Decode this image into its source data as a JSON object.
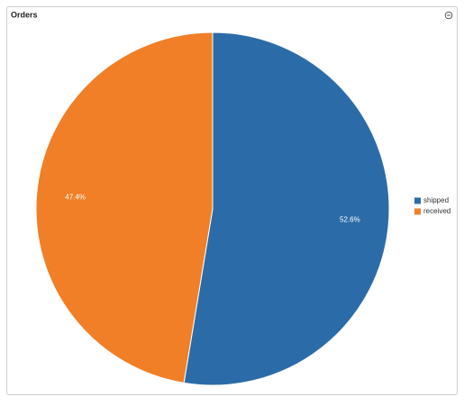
{
  "chart_data": {
    "type": "pie",
    "title": "Orders",
    "categories": [
      "shipped",
      "received"
    ],
    "values": [
      52.6,
      47.4
    ],
    "value_labels": [
      "52.6%",
      "47.4%"
    ],
    "colors": [
      "#2b6ca8",
      "#f07f27"
    ],
    "legend": "right"
  }
}
